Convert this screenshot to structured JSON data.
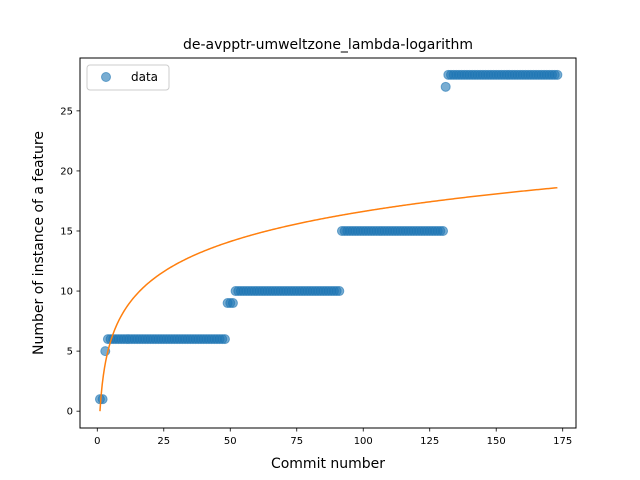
{
  "chart_data": {
    "type": "scatter",
    "title": "de-avpptr-umweltzone_lambda-logarithm",
    "xlabel": "Commit number",
    "ylabel": "Number of instance of a feature",
    "xlim": [
      -6.5,
      180
    ],
    "ylim": [
      -1.4,
      29.4
    ],
    "xticks": [
      0,
      25,
      50,
      75,
      100,
      125,
      150,
      175
    ],
    "yticks": [
      0,
      5,
      10,
      15,
      20,
      25
    ],
    "grid": false,
    "legend": {
      "position": "top-left",
      "entries": [
        "data"
      ]
    },
    "colors": {
      "data": "#1f77b4",
      "fit": "#ff7f0e"
    },
    "series": [
      {
        "name": "data",
        "kind": "scatter",
        "segments": [
          {
            "x_start": 1,
            "x_end": 2,
            "y": 1
          },
          {
            "x_start": 3,
            "x_end": 3,
            "y": 5
          },
          {
            "x_start": 4,
            "x_end": 48,
            "y": 6
          },
          {
            "x_start": 49,
            "x_end": 51,
            "y": 9
          },
          {
            "x_start": 52,
            "x_end": 91,
            "y": 10
          },
          {
            "x_start": 92,
            "x_end": 130,
            "y": 15
          },
          {
            "x_start": 131,
            "x_end": 131,
            "y": 27
          },
          {
            "x_start": 132,
            "x_end": 173,
            "y": 28
          }
        ]
      },
      {
        "kind": "line",
        "fit": {
          "model": "a*ln(x)",
          "a": 3.61,
          "x_start": 1,
          "x_end": 173
        }
      }
    ]
  }
}
